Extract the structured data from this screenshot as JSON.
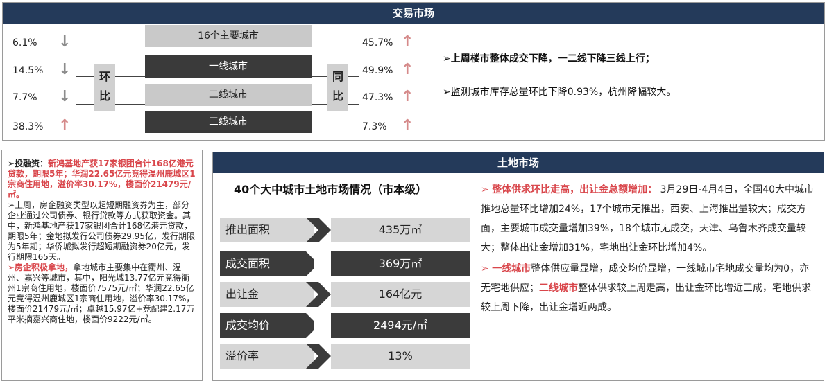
{
  "market": {
    "header": "交易市场",
    "cities": [
      {
        "label": "16个主要城市",
        "mom": "6.1%",
        "mom_dir": "down",
        "yoy": "45.7%",
        "yoy_dir": "up"
      },
      {
        "label": "一线城市",
        "mom": "14.5%",
        "mom_dir": "down",
        "yoy": "49.9%",
        "yoy_dir": "up"
      },
      {
        "label": "二线城市",
        "mom": "7.7%",
        "mom_dir": "down",
        "yoy": "47.3%",
        "yoy_dir": "up"
      },
      {
        "label": "三线城市",
        "mom": "38.3%",
        "mom_dir": "up",
        "yoy": "7.3%",
        "yoy_dir": "up"
      }
    ],
    "mom_label": "环比",
    "yoy_label": "同比",
    "summary1": "➢上周楼市整体成交下降，一二线下降三线上行；",
    "summary2": "➢监测城市库存总量环比下降0.93%，杭州降幅较大。"
  },
  "finance": {
    "p1_bullet": "➢投融资：",
    "p1_red": "新鸿基地产获17家银团合计168亿港元贷款，期限5年；华润22.65亿元竞得温州鹿城区1宗商住用地，溢价率30.17%，楼面价21479元/㎡。",
    "p2": "➢上周，房企融资类型以超短期融资券为主，部分企业通过公司债券、银行贷款等方式获取资金。其中，新鸿基地产获17家银团合计168亿港元贷款，期限5年；金地拟发行公司债券29.95亿，发行期限为5年期；华侨城拟发行超短期融资券20亿元，发行期限165天。",
    "p3_red": "➢房企积极拿地，",
    "p3": "拿地城市主要集中在衢州、温州、嘉兴等城市，其中，阳光城13.77亿元竞得衢州1宗商住用地，楼面价7575元/㎡；华润22.65亿元竞得温州鹿城区1宗商住用地，溢价率30.17%，楼面价21479元/㎡；卓越15.97亿+竞配建2.17万平米摘嘉兴商住地，楼面价9222元/㎡。"
  },
  "land": {
    "header": "土地市场",
    "title": "40个大中城市土地市场情况（市本级）",
    "metrics": [
      {
        "label": "推出面积",
        "value": "435万㎡"
      },
      {
        "label": "成交面积",
        "value": "369万㎡"
      },
      {
        "label": "出让金",
        "value": "164亿元"
      },
      {
        "label": "成交均价",
        "value": "2494元/㎡"
      },
      {
        "label": "溢价率",
        "value": "13%"
      }
    ],
    "bullet": "➢",
    "t1_hl": "整体供求环比走高，出让金总额增加：",
    "t1": "3月29日-4月4日，全国40大中城市推地总量环比增加24%，17个城市无推出，西安、上海推出量较大；成交方面，主要城市成交量增加39%，18个城市无成交，天津、乌鲁木齐成交量较大；整体出让金增加31%，宅地出让金环比增加4%。",
    "t2_hl": "一线城市",
    "t2a": "整体供应量显增，成交均价显增，一线城市宅地成交量均为0，亦无宅地供应；",
    "t2_hl2": "二线城市",
    "t2b": "整体供求较上周走高，出让金环比增近三成，宅地供求较上周下降，出让金增近两成。"
  },
  "icons": {
    "down_arrow": "arrow-down-icon",
    "up_arrow": "arrow-up-icon",
    "chevron": "chevron-right-icon"
  },
  "colors": {
    "header_bg": "#243a5a",
    "highlight_red": "#d9464b",
    "arrow_up": "#d58a8a",
    "arrow_down": "#8c8c8c"
  }
}
